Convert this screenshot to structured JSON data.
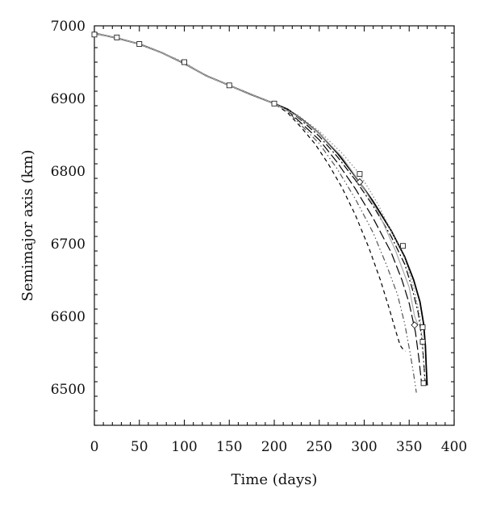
{
  "chart_data": {
    "type": "line",
    "xlabel": "Time (days)",
    "ylabel": "Semimajor axis (km)",
    "xlim": [
      0,
      400
    ],
    "ylim": [
      6450,
      7000
    ],
    "x_ticks": [
      0,
      50,
      100,
      150,
      200,
      250,
      300,
      350,
      400
    ],
    "y_ticks": [
      6500,
      6600,
      6700,
      6800,
      6900,
      7000
    ],
    "grid": false,
    "legend": "none",
    "series": [
      {
        "style": "solid",
        "color": "#000000",
        "marker": "none",
        "x": [
          0,
          25,
          50,
          75,
          100,
          125,
          150,
          175,
          200,
          215,
          230,
          250,
          270,
          290,
          310,
          330,
          345,
          355,
          362,
          366,
          368,
          369,
          370
        ],
        "y": [
          6990,
          6983,
          6975,
          6963,
          6948,
          6931,
          6918,
          6905,
          6893,
          6885,
          6872,
          6852,
          6825,
          6793,
          6758,
          6718,
          6682,
          6650,
          6620,
          6590,
          6560,
          6530,
          6505
        ]
      },
      {
        "style": "dash-dot",
        "color": "#000000",
        "marker": "none",
        "x": [
          0,
          25,
          50,
          75,
          100,
          125,
          150,
          175,
          200,
          215,
          230,
          250,
          270,
          290,
          310,
          330,
          345,
          353,
          360,
          364,
          366,
          368
        ],
        "y": [
          6990,
          6983,
          6975,
          6963,
          6948,
          6931,
          6918,
          6905,
          6893,
          6885,
          6870,
          6848,
          6820,
          6788,
          6752,
          6710,
          6672,
          6640,
          6605,
          6570,
          6540,
          6505
        ]
      },
      {
        "style": "long-dash",
        "color": "#000000",
        "marker": "none",
        "x": [
          0,
          25,
          50,
          75,
          100,
          125,
          150,
          175,
          200,
          215,
          230,
          250,
          270,
          290,
          310,
          330,
          342,
          350,
          357,
          361,
          364
        ],
        "y": [
          6990,
          6983,
          6975,
          6963,
          6948,
          6931,
          6918,
          6905,
          6893,
          6883,
          6866,
          6843,
          6812,
          6776,
          6735,
          6688,
          6650,
          6618,
          6578,
          6540,
          6505
        ]
      },
      {
        "style": "dash-dot-dot",
        "color": "#555555",
        "marker": "none",
        "x": [
          0,
          25,
          50,
          75,
          100,
          125,
          150,
          175,
          200,
          215,
          230,
          250,
          270,
          290,
          310,
          325,
          337,
          345,
          351,
          355,
          358
        ],
        "y": [
          6990,
          6983,
          6975,
          6963,
          6948,
          6931,
          6918,
          6905,
          6893,
          6882,
          6863,
          6838,
          6803,
          6762,
          6715,
          6670,
          6630,
          6590,
          6550,
          6520,
          6495
        ]
      },
      {
        "style": "short-dash",
        "color": "#000000",
        "marker": "none",
        "x": [
          0,
          25,
          50,
          75,
          100,
          125,
          150,
          175,
          200,
          215,
          230,
          245,
          260,
          275,
          290,
          305,
          318,
          328,
          335,
          340,
          343,
          346
        ],
        "y": [
          6990,
          6983,
          6975,
          6963,
          6948,
          6931,
          6918,
          6905,
          6893,
          6880,
          6860,
          6838,
          6810,
          6778,
          6740,
          6695,
          6650,
          6610,
          6580,
          6560,
          6555,
          6552
        ]
      },
      {
        "style": "dotted",
        "color": "#888888",
        "marker": "square",
        "x": [
          0,
          25,
          50,
          75,
          100,
          125,
          150,
          175,
          200,
          225,
          250,
          275,
          295,
          315,
          335,
          345,
          355,
          362,
          365,
          367
        ],
        "y": [
          6988,
          6984,
          6975,
          6963,
          6950,
          6930,
          6918,
          6905,
          6893,
          6878,
          6855,
          6825,
          6796,
          6755,
          6705,
          6680,
          6640,
          6600,
          6565,
          6510
        ],
        "marker_x": [
          0,
          25,
          50,
          100,
          150,
          200,
          295,
          343,
          365,
          365,
          366
        ],
        "marker_y": [
          6988,
          6984,
          6975,
          6950,
          6918,
          6893,
          6796,
          6697,
          6585,
          6565,
          6508
        ]
      },
      {
        "style": "solid",
        "color": "#aaaaaa",
        "marker": "diamond",
        "x": [
          0,
          25,
          50,
          75,
          100,
          125,
          150,
          175,
          200,
          225,
          250,
          275,
          295,
          315,
          335,
          350,
          356,
          360
        ],
        "y": [
          6990,
          6983,
          6975,
          6963,
          6948,
          6931,
          6918,
          6905,
          6893,
          6876,
          6852,
          6820,
          6785,
          6745,
          6690,
          6640,
          6600,
          6588
        ],
        "marker_x": [
          295,
          356
        ],
        "marker_y": [
          6785,
          6588
        ]
      }
    ]
  }
}
